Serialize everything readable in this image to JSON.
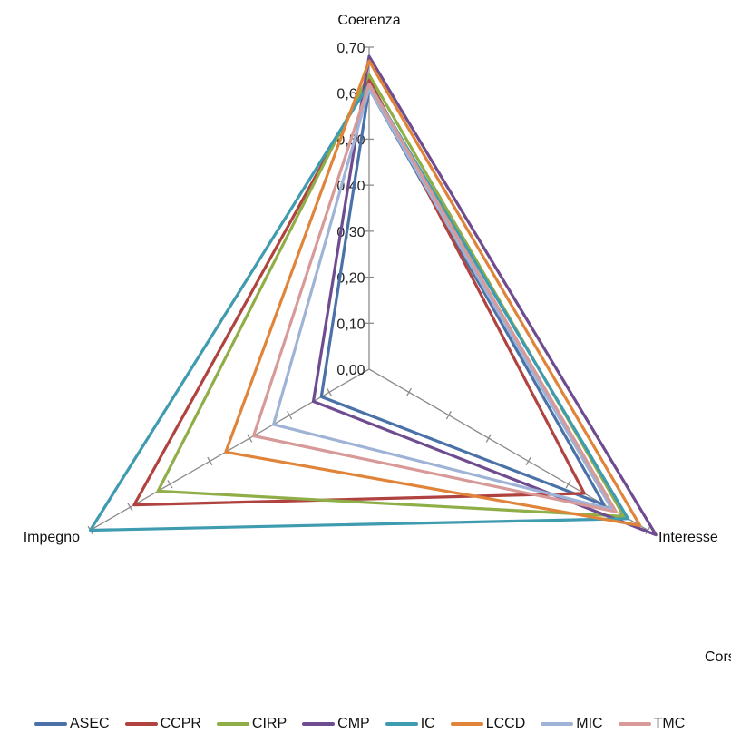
{
  "chart_data": {
    "type": "radar",
    "axes": [
      "Coerenza",
      "Interesse",
      "Impegno"
    ],
    "tick_labels": [
      "0,00",
      "0,10",
      "0,20",
      "0,30",
      "0,40",
      "0,50",
      "0,60",
      "0,70"
    ],
    "rlim": [
      0,
      0.7
    ],
    "grid": false,
    "legend_position": "bottom",
    "series": [
      {
        "name": "ASEC",
        "color": "#4a72a8",
        "values": [
          0.61,
          0.59,
          0.12
        ]
      },
      {
        "name": "CCPR",
        "color": "#b0433f",
        "values": [
          0.63,
          0.54,
          0.59
        ]
      },
      {
        "name": "CIRP",
        "color": "#8fae48",
        "values": [
          0.64,
          0.64,
          0.53
        ]
      },
      {
        "name": "CMP",
        "color": "#6e4c8f",
        "values": [
          0.68,
          0.72,
          0.14
        ]
      },
      {
        "name": "IC",
        "color": "#3f9bb0",
        "values": [
          0.62,
          0.65,
          0.7
        ]
      },
      {
        "name": "LCCD",
        "color": "#e0843a",
        "values": [
          0.67,
          0.68,
          0.36
        ]
      },
      {
        "name": "MIC",
        "color": "#9fb3d6",
        "values": [
          0.61,
          0.61,
          0.24
        ]
      },
      {
        "name": "TMC",
        "color": "#d79a98",
        "values": [
          0.62,
          0.62,
          0.29
        ]
      }
    ],
    "extra_text": "Cors"
  }
}
